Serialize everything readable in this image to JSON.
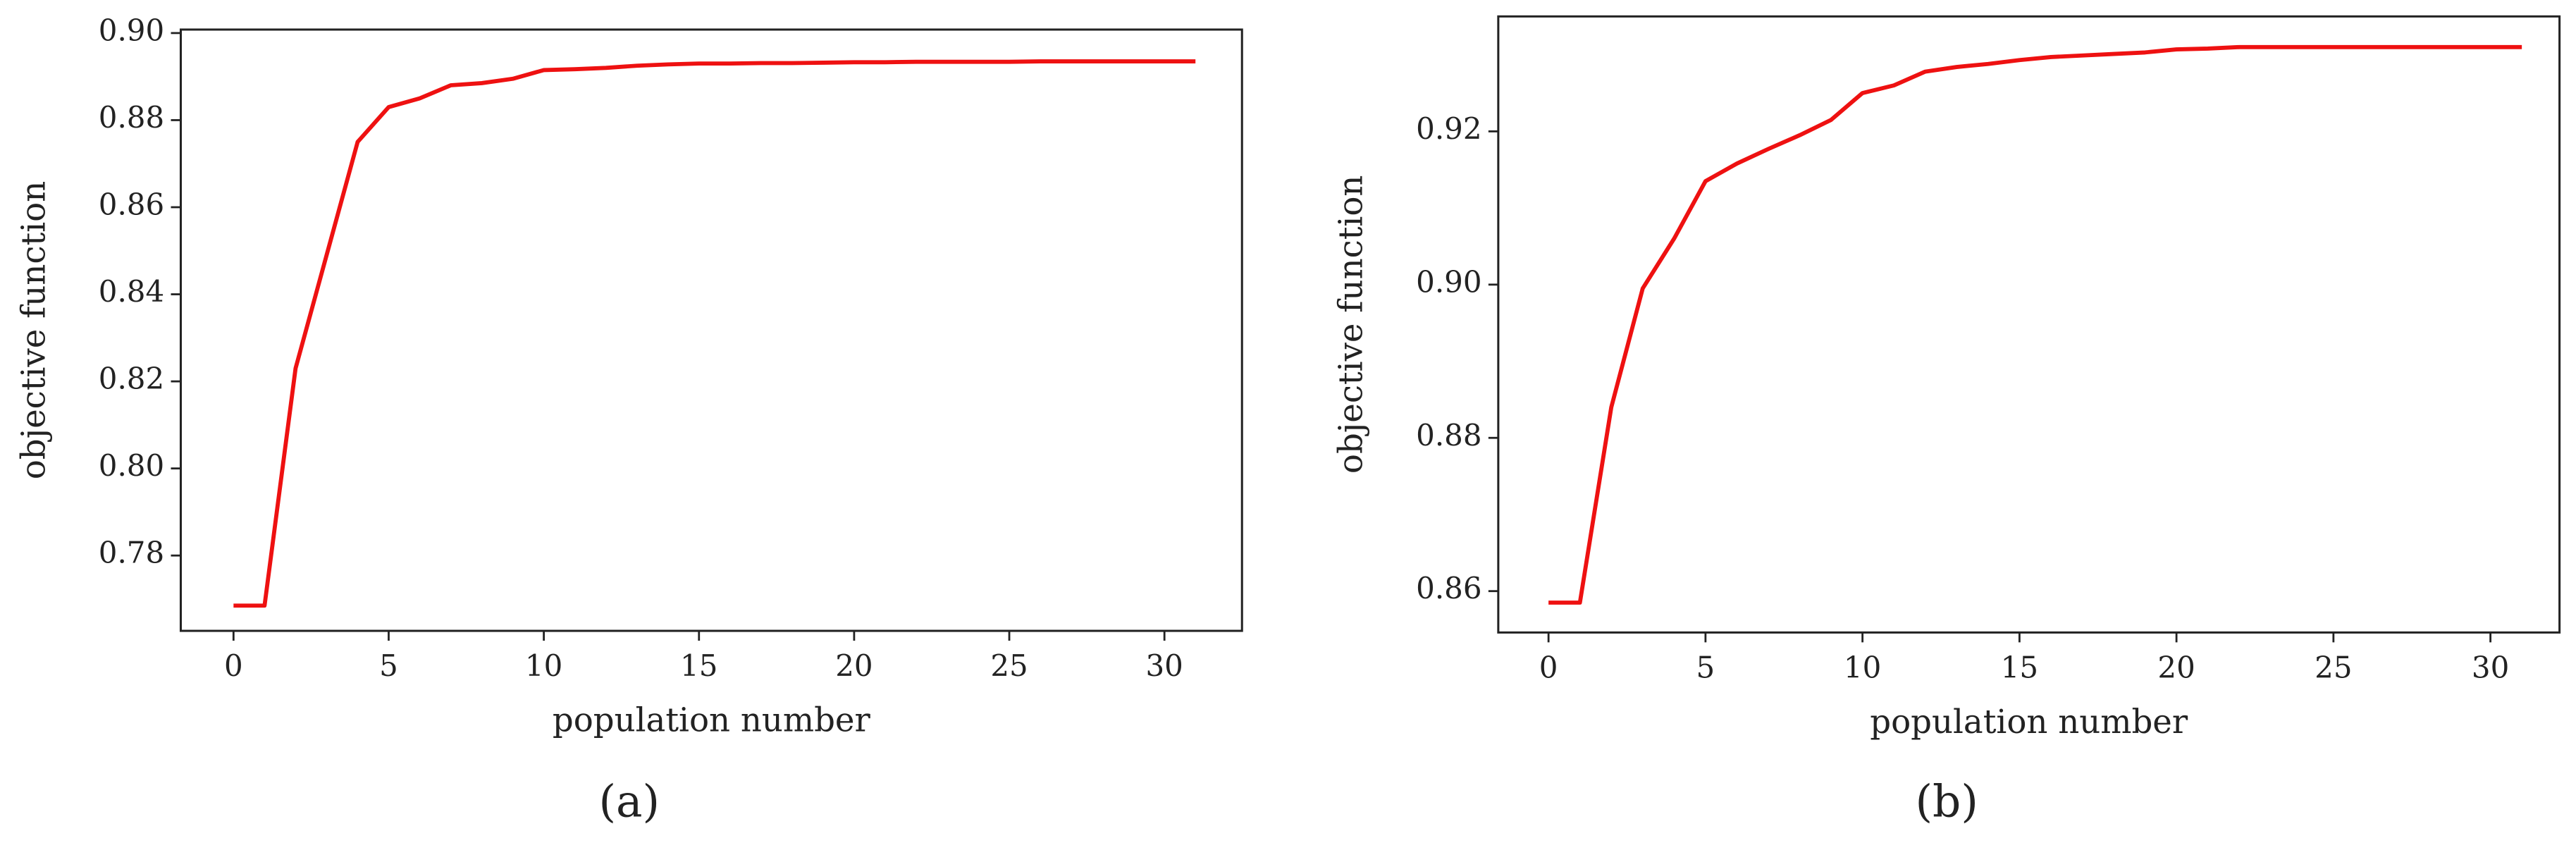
{
  "chart_data": [
    {
      "type": "line",
      "caption": "(a)",
      "x_label": "population number",
      "y_label": "objective function",
      "x": [
        0,
        1,
        2,
        3,
        4,
        5,
        6,
        7,
        8,
        9,
        10,
        11,
        12,
        13,
        14,
        15,
        16,
        17,
        18,
        19,
        20,
        21,
        22,
        23,
        24,
        25,
        26,
        27,
        28,
        29,
        30,
        31
      ],
      "series": [
        {
          "color": "#ee1111",
          "values": [
            0.7685,
            0.7685,
            0.823,
            0.849,
            0.875,
            0.883,
            0.885,
            0.888,
            0.8885,
            0.8895,
            0.8915,
            0.8917,
            0.892,
            0.8925,
            0.8928,
            0.893,
            0.893,
            0.8931,
            0.8931,
            0.8932,
            0.8933,
            0.8933,
            0.8934,
            0.8934,
            0.8934,
            0.8934,
            0.8935,
            0.8935,
            0.8935,
            0.8935,
            0.8935,
            0.8935
          ]
        }
      ],
      "xlim": [
        -1.7,
        32.5
      ],
      "xticks": [
        0,
        5,
        10,
        15,
        20,
        25,
        30
      ],
      "ylim": [
        0.7627,
        0.9008
      ],
      "yticks": [
        0.78,
        {
          "value": 0.8,
          "label": "0.80"
        },
        0.82,
        0.84,
        0.86,
        0.88,
        {
          "value": 0.9,
          "label": "0.90"
        }
      ]
    },
    {
      "type": "line",
      "caption": "(b)",
      "x_label": "population number",
      "y_label": "objective function",
      "x": [
        0,
        1,
        2,
        3,
        4,
        5,
        6,
        7,
        8,
        9,
        10,
        11,
        12,
        13,
        14,
        15,
        16,
        17,
        18,
        19,
        20,
        21,
        22,
        23,
        24,
        25,
        26,
        27,
        28,
        29,
        30,
        31
      ],
      "series": [
        {
          "color": "#ee1111",
          "values": [
            0.8585,
            0.8585,
            0.884,
            0.8995,
            0.906,
            0.9135,
            0.9158,
            0.9177,
            0.9195,
            0.9215,
            0.925,
            0.926,
            0.9278,
            0.9284,
            0.9288,
            0.9293,
            0.9297,
            0.9299,
            0.9301,
            0.9303,
            0.9307,
            0.9308,
            0.931,
            0.931,
            0.931,
            0.931,
            0.931,
            0.931,
            0.931,
            0.931,
            0.931,
            0.931
          ]
        }
      ],
      "xlim": [
        -1.6,
        32.2
      ],
      "xticks": [
        0,
        5,
        10,
        15,
        20,
        25,
        30
      ],
      "ylim": [
        0.8546,
        0.935
      ],
      "yticks": [
        0.86,
        0.88,
        {
          "value": 0.9,
          "label": "0.90"
        },
        0.92
      ]
    }
  ]
}
